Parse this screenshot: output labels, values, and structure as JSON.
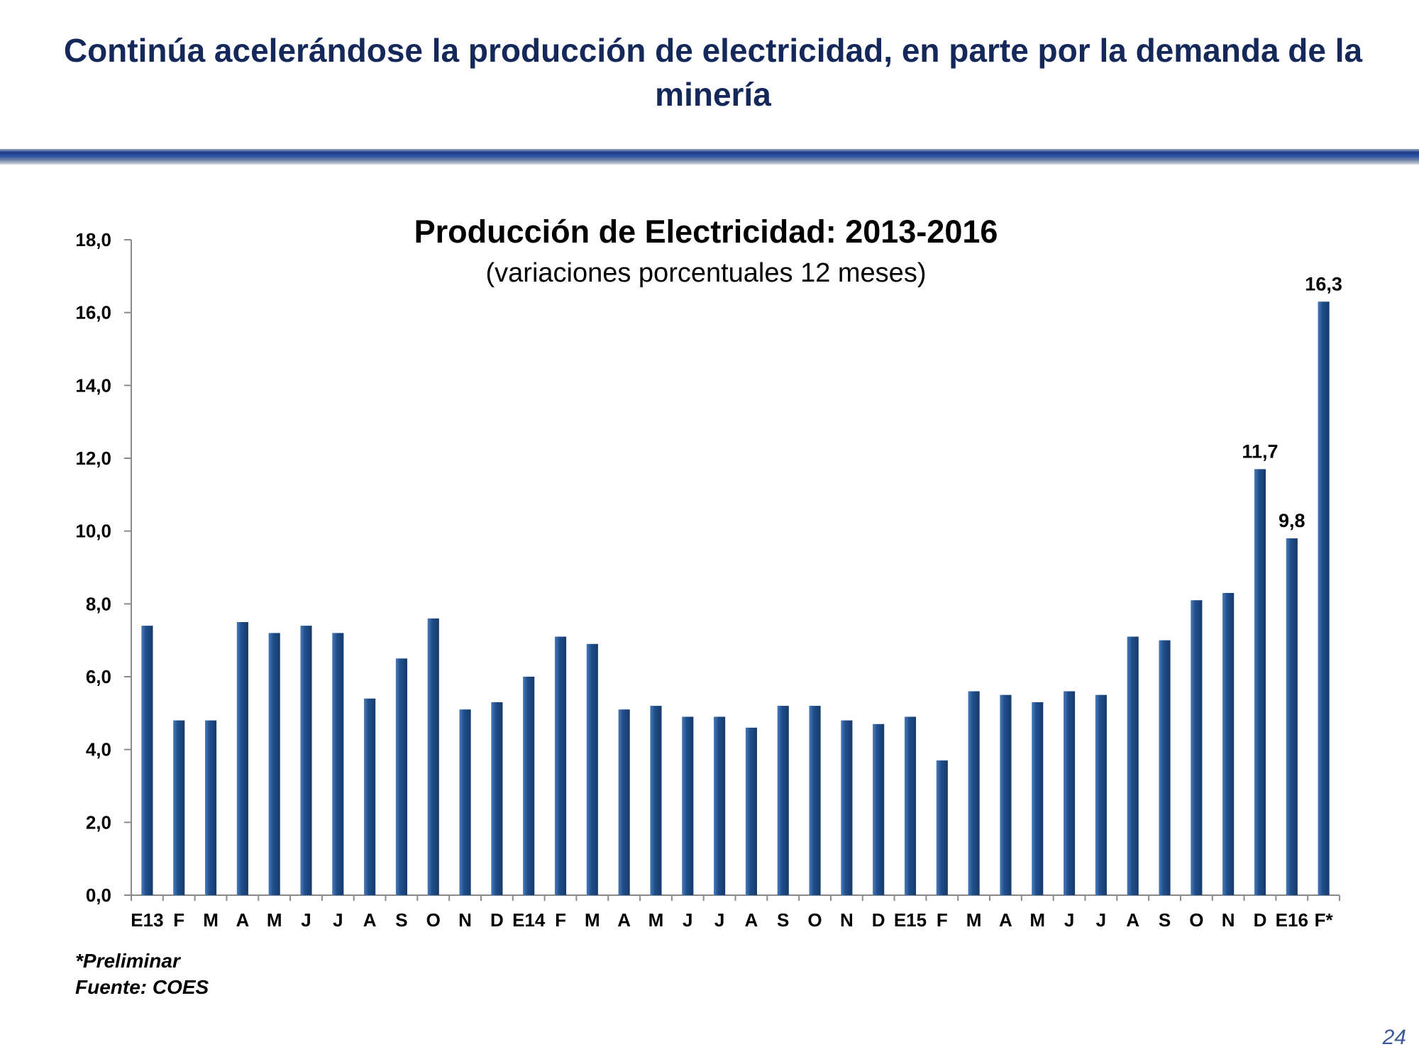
{
  "slide": {
    "title": "Continúa acelerándose la producción de electricidad, en parte por la demanda de la minería",
    "page_number": "24",
    "footnote_lines": [
      "*Preliminar",
      "Fuente: COES"
    ]
  },
  "colors": {
    "title": "#14285a",
    "bar": "#1f4e8c",
    "bar_light": "#4a7ab8",
    "bar_dark": "#173a68"
  },
  "chart_data": {
    "type": "bar",
    "title": "Producción de Electricidad: 2013-2016",
    "subtitle": "(variaciones porcentuales 12 meses)",
    "xlabel": "",
    "ylabel": "",
    "ylim": [
      0,
      18
    ],
    "yticks": [
      "0,0",
      "2,0",
      "4,0",
      "6,0",
      "8,0",
      "10,0",
      "12,0",
      "14,0",
      "16,0",
      "18,0"
    ],
    "categories": [
      "E13",
      "F",
      "M",
      "A",
      "M",
      "J",
      "J",
      "A",
      "S",
      "O",
      "N",
      "D",
      "E14",
      "F",
      "M",
      "A",
      "M",
      "J",
      "J",
      "A",
      "S",
      "O",
      "N",
      "D",
      "E15",
      "F",
      "M",
      "A",
      "M",
      "J",
      "J",
      "A",
      "S",
      "O",
      "N",
      "D",
      "E16",
      "F*"
    ],
    "values": [
      7.4,
      4.8,
      4.8,
      7.5,
      7.2,
      7.4,
      7.2,
      5.4,
      6.5,
      7.6,
      5.1,
      5.3,
      6.0,
      7.1,
      6.9,
      5.1,
      5.2,
      4.9,
      4.9,
      4.6,
      5.2,
      5.2,
      4.8,
      4.7,
      4.9,
      3.7,
      5.6,
      5.5,
      5.3,
      5.6,
      5.5,
      7.1,
      7.0,
      8.1,
      8.3,
      11.7,
      9.8,
      16.3
    ],
    "data_labels": [
      {
        "index": 35,
        "text": "11,7"
      },
      {
        "index": 36,
        "text": "9,8"
      },
      {
        "index": 37,
        "text": "16,3"
      }
    ],
    "grid": false,
    "legend": "none"
  }
}
